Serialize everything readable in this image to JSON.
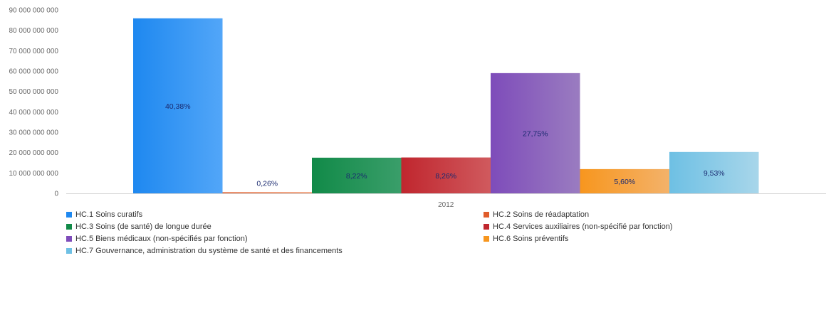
{
  "chart_data": {
    "type": "bar",
    "categories": [
      "2012"
    ],
    "ylim": [
      0,
      90000000000
    ],
    "yticks": [
      0,
      10000000000,
      20000000000,
      30000000000,
      40000000000,
      50000000000,
      60000000000,
      70000000000,
      80000000000,
      90000000000
    ],
    "ytick_labels": [
      "0",
      "10 000 000 000",
      "20 000 000 000",
      "30 000 000 000",
      "40 000 000 000",
      "50 000 000 000",
      "60 000 000 000",
      "70 000 000 000",
      "80 000 000 000",
      "90 000 000 000"
    ],
    "grid": false,
    "legend_position": "bottom",
    "series": [
      {
        "name": "HC.1 Soins curatifs",
        "values": [
          85900000000
        ],
        "label": "40,38%",
        "color": "#1e88f0",
        "color_light": "#52a6f8"
      },
      {
        "name": "HC.2 Soins de réadaptation",
        "values": [
          550000000
        ],
        "label": "0,26%",
        "color": "#e05c2a",
        "color_light": "#ee8a5c"
      },
      {
        "name": "HC.3 Soins (de santé) de longue durée",
        "values": [
          17500000000
        ],
        "label": "8,22%",
        "color": "#118a48",
        "color_light": "#3a9e6a"
      },
      {
        "name": "HC.4 Services auxiliaires (non-spécifié par fonction)",
        "values": [
          17600000000
        ],
        "label": "8,26%",
        "color": "#c0262e",
        "color_light": "#d05a5e"
      },
      {
        "name": "HC.5 Biens médicaux (non-spécifiés par fonction)",
        "values": [
          59000000000
        ],
        "label": "27,75%",
        "color": "#7e4cba",
        "color_light": "#9a7cc0"
      },
      {
        "name": "HC.6 Soins préventifs",
        "values": [
          11900000000
        ],
        "label": "5,60%",
        "color": "#f7961e",
        "color_light": "#f4b26a"
      },
      {
        "name": "HC.7 Gouvernance, administration du système de santé et des financements",
        "values": [
          20300000000
        ],
        "label": "9,53%",
        "color": "#6ec0e4",
        "color_light": "#a8d6ea"
      }
    ]
  }
}
